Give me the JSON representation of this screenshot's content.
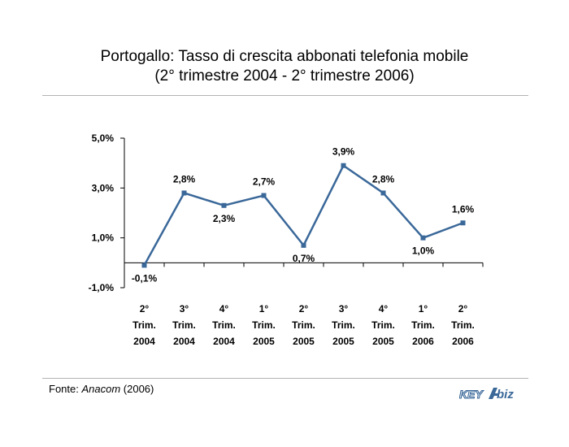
{
  "title": {
    "line1": "Portogallo: Tasso di crescita abbonati telefonia mobile",
    "line2": "(2° trimestre 2004 - 2° trimestre 2006)"
  },
  "footer": {
    "source_prefix": "Fonte: ",
    "source_name": "Anacom",
    "source_suffix": " (2006)",
    "logo_text_1": "KEY",
    "logo_text_2": "biz"
  },
  "colors": {
    "line": "#3a6899",
    "axis": "#000000",
    "rule": "#b3b3b3",
    "logo": "#3a6899"
  },
  "chart_data": {
    "type": "line",
    "title": "",
    "xlabel": "",
    "ylabel": "",
    "ylim": [
      -1.0,
      5.0
    ],
    "yticks": [
      -1.0,
      1.0,
      3.0,
      5.0
    ],
    "ytick_labels": [
      "-1,0%",
      "1,0%",
      "3,0%",
      "5,0%"
    ],
    "grid": false,
    "legend": "none",
    "categories": [
      [
        "2°",
        "Trim.",
        "2004"
      ],
      [
        "3°",
        "Trim.",
        "2004"
      ],
      [
        "4°",
        "Trim.",
        "2004"
      ],
      [
        "1°",
        "Trim.",
        "2005"
      ],
      [
        "2°",
        "Trim.",
        "2005"
      ],
      [
        "3°",
        "Trim.",
        "2005"
      ],
      [
        "4°",
        "Trim.",
        "2005"
      ],
      [
        "1°",
        "Trim.",
        "2006"
      ],
      [
        "2°",
        "Trim.",
        "2006"
      ]
    ],
    "series": [
      {
        "values": [
          -0.1,
          2.8,
          2.3,
          2.7,
          0.7,
          3.9,
          2.8,
          1.0,
          1.6
        ],
        "labels": [
          "-0,1%",
          "2,8%",
          "2,3%",
          "2,7%",
          "0,7%",
          "3,9%",
          "2,8%",
          "1,0%",
          "1,6%"
        ],
        "label_positions": [
          "below",
          "above",
          "below",
          "above",
          "below",
          "above",
          "above",
          "below",
          "above"
        ]
      }
    ]
  }
}
